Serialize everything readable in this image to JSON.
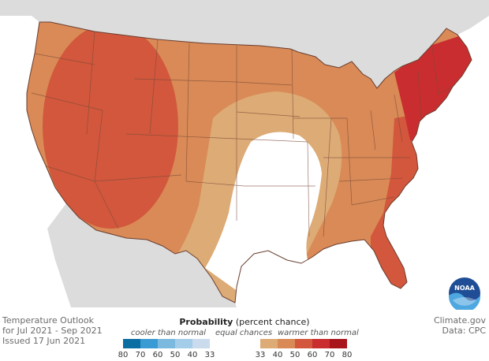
{
  "title": "Temperature Outlook",
  "period": "for Jul 2021 - Sep 2021",
  "issued": "Issued 17 Jun 2021",
  "source": "Climate.gov",
  "data_credit": "Data: CPC",
  "logo_text": "NOAA",
  "legend": {
    "title_bold": "Probability",
    "title_rest": " (percent chance)",
    "cooler_label": "cooler than normal",
    "equal_label": "equal chances",
    "warmer_label": "warmer than normal",
    "cool_ticks": [
      "80",
      "70",
      "60",
      "50",
      "40",
      "33"
    ],
    "warm_ticks": [
      "33",
      "40",
      "50",
      "60",
      "70",
      "80"
    ],
    "cool_colors": [
      "#0b6ea3",
      "#3a9bd4",
      "#7bb9df",
      "#a3cde8",
      "#c9dbed"
    ],
    "warm_colors": [
      "#ddab75",
      "#d98a56",
      "#d2573c",
      "#c92d2f",
      "#a8161c"
    ]
  },
  "colors": {
    "land_outside": "#dcdcdc",
    "ocean": "#ffffff",
    "equal_chances": "#ffffff",
    "above_33_40": "#ddab75",
    "above_40_50": "#d98a56",
    "above_50_60": "#d2573c",
    "above_60_70": "#c92d2f",
    "state_lines": "#7a4a3a"
  }
}
